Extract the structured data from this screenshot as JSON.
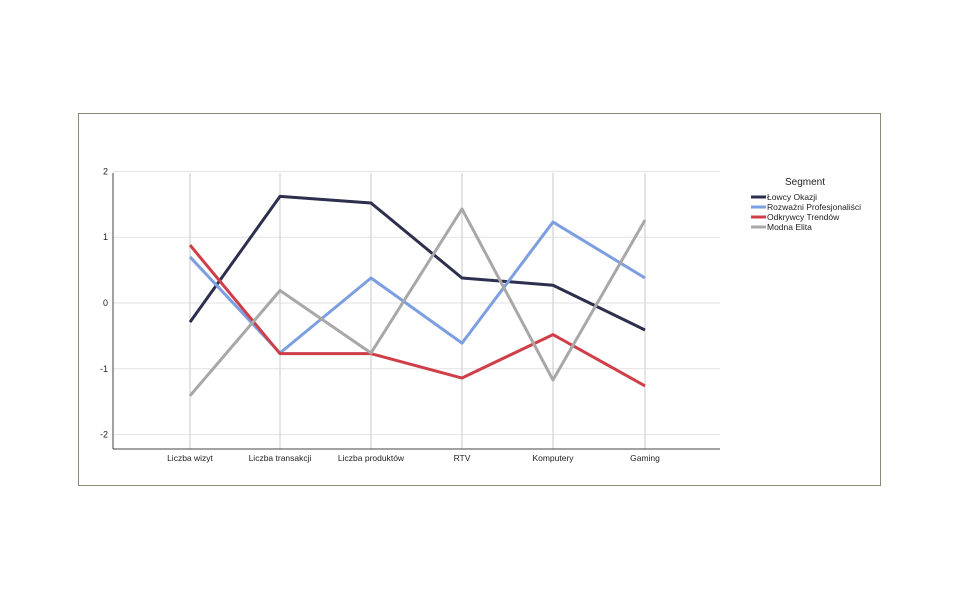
{
  "chart_data": {
    "type": "line",
    "title": "",
    "xlabel": "",
    "ylabel": "",
    "categories": [
      "Liczba wizyt",
      "Liczba transakcji",
      "Liczba produktów",
      "RTV",
      "Komputery",
      "Gaming"
    ],
    "ylim": [
      -2.2,
      2
    ],
    "yticks": [
      2,
      1,
      0,
      -1,
      -2
    ],
    "grid": true,
    "legend": {
      "title": "Segment",
      "placement": "right"
    },
    "series": [
      {
        "name": "Łowcy Okazji",
        "color": "#2d2f4e",
        "values": [
          -0.29,
          1.62,
          1.52,
          0.38,
          0.27,
          -0.41
        ]
      },
      {
        "name": "Rozważni Profesjonaliści",
        "color": "#7b9fe0",
        "values": [
          0.7,
          -0.76,
          0.38,
          -0.61,
          1.23,
          0.38
        ]
      },
      {
        "name": "Odkrywcy Trendów",
        "color": "#cf3f4a",
        "values": [
          0.88,
          -0.77,
          -0.77,
          -1.14,
          -0.48,
          -1.26
        ]
      },
      {
        "name": "Modna Elita",
        "color": "#a8a8a8",
        "values": [
          -1.41,
          0.19,
          -0.76,
          1.43,
          -1.17,
          1.26
        ]
      }
    ]
  }
}
